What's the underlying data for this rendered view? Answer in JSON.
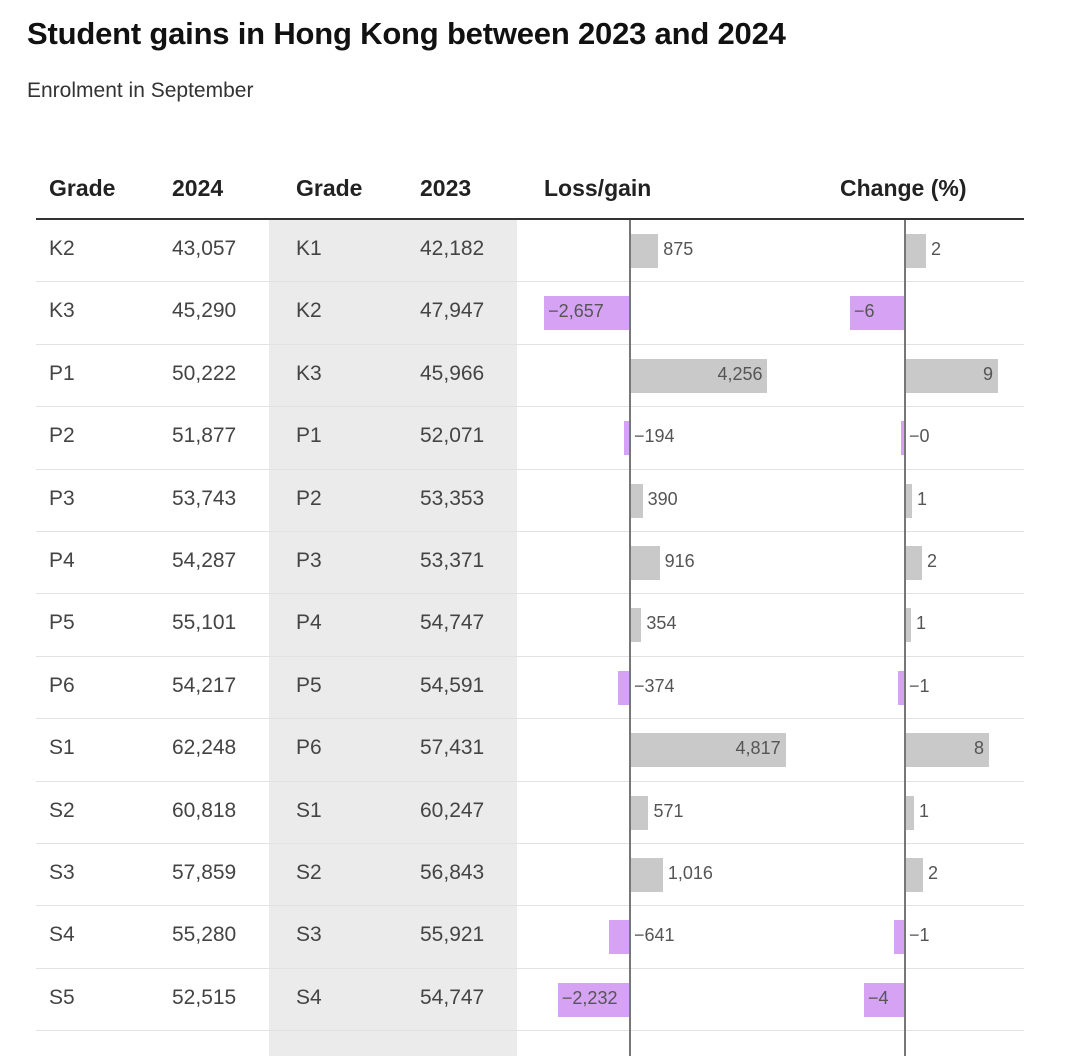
{
  "title": "Student gains in Hong Kong between 2023 and 2024",
  "subtitle": "Enrolment in September",
  "headers": {
    "grade_2024": "Grade",
    "year_2024": "2024",
    "grade_2023": "Grade",
    "year_2023": "2023",
    "loss_gain": "Loss/gain",
    "change_pct": "Change (%)"
  },
  "colors": {
    "gain": "#c9c9c9",
    "loss": "#d6a2f3",
    "shade": "#ebebeb"
  },
  "chart_data": {
    "type": "table",
    "columns": [
      "Grade",
      "2024",
      "Grade",
      "2023",
      "Loss/gain",
      "Change (%)"
    ],
    "rows": [
      {
        "grade_2024": "K2",
        "v2024": "43,057",
        "grade_2023": "K1",
        "v2023": "42,182",
        "diff": 875,
        "diff_label": "875",
        "pct": 2.1,
        "pct_label": "2"
      },
      {
        "grade_2024": "K3",
        "v2024": "45,290",
        "grade_2023": "K2",
        "v2023": "47,947",
        "diff": -2657,
        "diff_label": "−2,657",
        "pct": -5.5,
        "pct_label": "−6"
      },
      {
        "grade_2024": "P1",
        "v2024": "50,222",
        "grade_2023": "K3",
        "v2023": "45,966",
        "diff": 4256,
        "diff_label": "4,256",
        "pct": 9.3,
        "pct_label": "9"
      },
      {
        "grade_2024": "P2",
        "v2024": "51,877",
        "grade_2023": "P1",
        "v2023": "52,071",
        "diff": -194,
        "diff_label": "−194",
        "pct": -0.4,
        "pct_label": "−0"
      },
      {
        "grade_2024": "P3",
        "v2024": "53,743",
        "grade_2023": "P2",
        "v2023": "53,353",
        "diff": 390,
        "diff_label": "390",
        "pct": 0.7,
        "pct_label": "1"
      },
      {
        "grade_2024": "P4",
        "v2024": "54,287",
        "grade_2023": "P3",
        "v2023": "53,371",
        "diff": 916,
        "diff_label": "916",
        "pct": 1.7,
        "pct_label": "2"
      },
      {
        "grade_2024": "P5",
        "v2024": "55,101",
        "grade_2023": "P4",
        "v2023": "54,747",
        "diff": 354,
        "diff_label": "354",
        "pct": 0.6,
        "pct_label": "1"
      },
      {
        "grade_2024": "P6",
        "v2024": "54,217",
        "grade_2023": "P5",
        "v2023": "54,591",
        "diff": -374,
        "diff_label": "−374",
        "pct": -0.7,
        "pct_label": "−1"
      },
      {
        "grade_2024": "S1",
        "v2024": "62,248",
        "grade_2023": "P6",
        "v2023": "57,431",
        "diff": 4817,
        "diff_label": "4,817",
        "pct": 8.4,
        "pct_label": "8"
      },
      {
        "grade_2024": "S2",
        "v2024": "60,818",
        "grade_2023": "S1",
        "v2023": "60,247",
        "diff": 571,
        "diff_label": "571",
        "pct": 0.9,
        "pct_label": "1"
      },
      {
        "grade_2024": "S3",
        "v2024": "57,859",
        "grade_2023": "S2",
        "v2023": "56,843",
        "diff": 1016,
        "diff_label": "1,016",
        "pct": 1.8,
        "pct_label": "2"
      },
      {
        "grade_2024": "S4",
        "v2024": "55,280",
        "grade_2023": "S3",
        "v2023": "55,921",
        "diff": -641,
        "diff_label": "−641",
        "pct": -1.1,
        "pct_label": "−1"
      },
      {
        "grade_2024": "S5",
        "v2024": "52,515",
        "grade_2023": "S4",
        "v2023": "54,747",
        "diff": -2232,
        "diff_label": "−2,232",
        "pct": -4.1,
        "pct_label": "−4"
      }
    ]
  }
}
